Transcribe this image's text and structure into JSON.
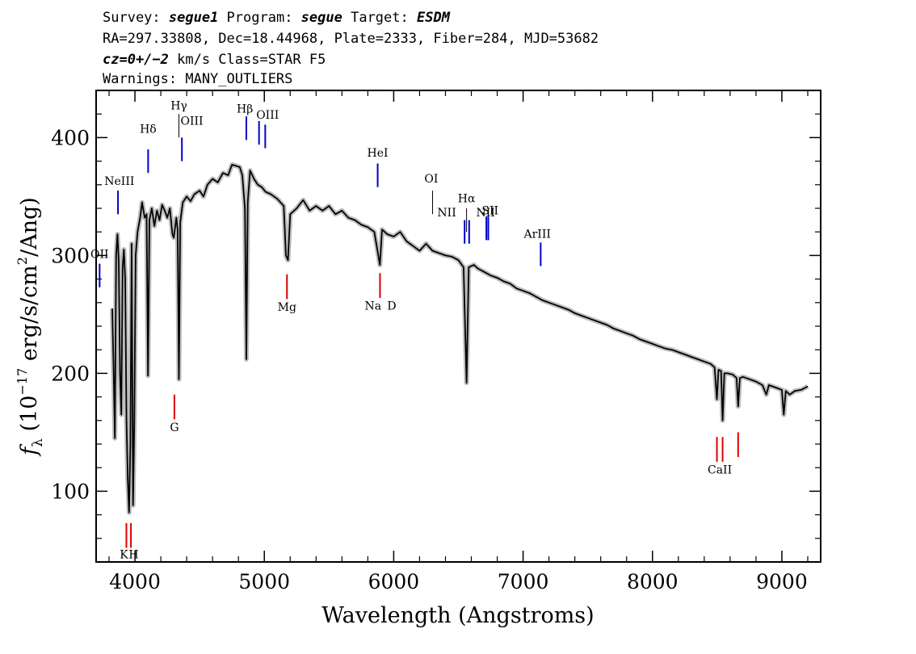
{
  "header": {
    "line1": {
      "survey_label": "Survey: ",
      "survey": "segue1",
      "program_label": " Program: ",
      "program": "segue",
      "target_label": " Target: ",
      "target": "ESDM"
    },
    "line2": "RA=297.33808, Dec=18.44968, Plate=2333, Fiber=284, MJD=53682",
    "line3": {
      "cz": "cz=0+/−2",
      "rest": " km/s Class=STAR F5"
    },
    "line4": "Warnings: MANY_OUTLIERS"
  },
  "chart_data": {
    "type": "line",
    "xlabel": "Wavelength (Angstroms)",
    "ylabel": {
      "prefix": "f",
      "subscript": "λ",
      "unit_start": " (10",
      "exponent": "−17",
      "unit_mid": " erg/s/cm",
      "unit_sq": "2",
      "unit_end": "/Ang)"
    },
    "xlim": [
      3700,
      9300
    ],
    "ylim": [
      40,
      440
    ],
    "x_ticks": [
      4000,
      5000,
      6000,
      7000,
      8000,
      9000
    ],
    "y_ticks": [
      100,
      200,
      300,
      400
    ],
    "grid": false,
    "series": [
      {
        "color": "#000000",
        "error_color": "#bdbdbd",
        "points": [
          [
            3825,
            255
          ],
          [
            3835,
            205
          ],
          [
            3845,
            145
          ],
          [
            3855,
            300
          ],
          [
            3865,
            318
          ],
          [
            3875,
            295
          ],
          [
            3885,
            200
          ],
          [
            3895,
            165
          ],
          [
            3905,
            290
          ],
          [
            3915,
            305
          ],
          [
            3925,
            280
          ],
          [
            3935,
            160
          ],
          [
            3945,
            110
          ],
          [
            3955,
            82
          ],
          [
            3965,
            140
          ],
          [
            3975,
            310
          ],
          [
            3985,
            88
          ],
          [
            3995,
            160
          ],
          [
            4005,
            300
          ],
          [
            4020,
            320
          ],
          [
            4040,
            332
          ],
          [
            4055,
            345
          ],
          [
            4075,
            332
          ],
          [
            4090,
            335
          ],
          [
            4101,
            198
          ],
          [
            4112,
            330
          ],
          [
            4130,
            340
          ],
          [
            4150,
            325
          ],
          [
            4170,
            338
          ],
          [
            4190,
            330
          ],
          [
            4210,
            343
          ],
          [
            4230,
            338
          ],
          [
            4250,
            332
          ],
          [
            4270,
            340
          ],
          [
            4290,
            318
          ],
          [
            4300,
            315
          ],
          [
            4320,
            332
          ],
          [
            4330,
            322
          ],
          [
            4340,
            195
          ],
          [
            4350,
            328
          ],
          [
            4370,
            345
          ],
          [
            4400,
            350
          ],
          [
            4430,
            346
          ],
          [
            4460,
            352
          ],
          [
            4500,
            355
          ],
          [
            4530,
            350
          ],
          [
            4560,
            360
          ],
          [
            4600,
            365
          ],
          [
            4640,
            362
          ],
          [
            4680,
            370
          ],
          [
            4720,
            368
          ],
          [
            4750,
            377
          ],
          [
            4780,
            376
          ],
          [
            4810,
            375
          ],
          [
            4830,
            368
          ],
          [
            4850,
            340
          ],
          [
            4861,
            212
          ],
          [
            4872,
            345
          ],
          [
            4890,
            372
          ],
          [
            4920,
            365
          ],
          [
            4950,
            360
          ],
          [
            4980,
            358
          ],
          [
            5010,
            354
          ],
          [
            5050,
            352
          ],
          [
            5100,
            348
          ],
          [
            5150,
            342
          ],
          [
            5167,
            300
          ],
          [
            5183,
            296
          ],
          [
            5200,
            335
          ],
          [
            5250,
            340
          ],
          [
            5300,
            347
          ],
          [
            5350,
            338
          ],
          [
            5400,
            342
          ],
          [
            5450,
            338
          ],
          [
            5500,
            342
          ],
          [
            5550,
            335
          ],
          [
            5600,
            338
          ],
          [
            5650,
            332
          ],
          [
            5700,
            330
          ],
          [
            5750,
            326
          ],
          [
            5800,
            324
          ],
          [
            5850,
            320
          ],
          [
            5893,
            292
          ],
          [
            5910,
            322
          ],
          [
            5950,
            318
          ],
          [
            6000,
            316
          ],
          [
            6050,
            320
          ],
          [
            6100,
            312
          ],
          [
            6150,
            308
          ],
          [
            6200,
            304
          ],
          [
            6250,
            310
          ],
          [
            6300,
            304
          ],
          [
            6350,
            302
          ],
          [
            6400,
            300
          ],
          [
            6450,
            299
          ],
          [
            6500,
            296
          ],
          [
            6540,
            290
          ],
          [
            6563,
            192
          ],
          [
            6580,
            290
          ],
          [
            6620,
            292
          ],
          [
            6650,
            289
          ],
          [
            6700,
            286
          ],
          [
            6750,
            283
          ],
          [
            6800,
            281
          ],
          [
            6850,
            278
          ],
          [
            6900,
            276
          ],
          [
            6950,
            272
          ],
          [
            7000,
            270
          ],
          [
            7050,
            268
          ],
          [
            7100,
            265
          ],
          [
            7150,
            262
          ],
          [
            7200,
            260
          ],
          [
            7250,
            258
          ],
          [
            7300,
            256
          ],
          [
            7350,
            254
          ],
          [
            7400,
            251
          ],
          [
            7450,
            249
          ],
          [
            7500,
            247
          ],
          [
            7550,
            245
          ],
          [
            7600,
            243
          ],
          [
            7650,
            241
          ],
          [
            7700,
            238
          ],
          [
            7750,
            236
          ],
          [
            7800,
            234
          ],
          [
            7850,
            232
          ],
          [
            7900,
            229
          ],
          [
            7950,
            227
          ],
          [
            8000,
            225
          ],
          [
            8050,
            223
          ],
          [
            8100,
            221
          ],
          [
            8150,
            220
          ],
          [
            8200,
            218
          ],
          [
            8250,
            216
          ],
          [
            8300,
            214
          ],
          [
            8350,
            212
          ],
          [
            8400,
            210
          ],
          [
            8450,
            208
          ],
          [
            8480,
            205
          ],
          [
            8498,
            178
          ],
          [
            8510,
            203
          ],
          [
            8530,
            202
          ],
          [
            8542,
            160
          ],
          [
            8555,
            200
          ],
          [
            8580,
            200
          ],
          [
            8620,
            199
          ],
          [
            8650,
            196
          ],
          [
            8662,
            172
          ],
          [
            8675,
            196
          ],
          [
            8700,
            197
          ],
          [
            8750,
            195
          ],
          [
            8800,
            193
          ],
          [
            8850,
            190
          ],
          [
            8880,
            182
          ],
          [
            8900,
            190
          ],
          [
            8950,
            188
          ],
          [
            9000,
            186
          ],
          [
            9015,
            165
          ],
          [
            9030,
            185
          ],
          [
            9060,
            182
          ],
          [
            9100,
            185
          ],
          [
            9150,
            186
          ],
          [
            9200,
            189
          ]
        ]
      }
    ],
    "annotations": {
      "blue": [
        {
          "label": "OII",
          "x": 3727,
          "y1": 273,
          "y2": 293
        },
        {
          "label": "NeIII",
          "x": 3869,
          "y1": 335,
          "y2": 355
        },
        {
          "label": "Hδ",
          "x": 4102,
          "y1": 370,
          "y2": 390
        },
        {
          "label": "OIII",
          "x": 4363,
          "y1": 380,
          "y2": 400
        },
        {
          "label": "Hβ",
          "x": 4861,
          "y1": 398,
          "y2": 418
        },
        {
          "label": "OIII",
          "x": 4959,
          "y1": 394,
          "y2": 414
        },
        {
          "label": "OIII",
          "x": 5007,
          "y1": 391,
          "y2": 411
        },
        {
          "label": "HeI",
          "x": 5876,
          "y1": 358,
          "y2": 378
        },
        {
          "label": "NII",
          "x": 6548,
          "y1": 310,
          "y2": 330
        },
        {
          "label": "NII",
          "x": 6583,
          "y1": 310,
          "y2": 330
        },
        {
          "label": "SII",
          "x": 6716,
          "y1": 313,
          "y2": 333
        },
        {
          "label": "SII",
          "x": 6731,
          "y1": 313,
          "y2": 333
        },
        {
          "label": "ArIII",
          "x": 7136,
          "y1": 291,
          "y2": 311
        }
      ],
      "emission_thin": [
        {
          "label": "Hγ",
          "x": 4340,
          "y1": 400,
          "y2": 420
        },
        {
          "label": "OI",
          "x": 6300,
          "y1": 335,
          "y2": 355
        },
        {
          "label": "Hα",
          "x": 6563,
          "y1": 320,
          "y2": 340
        }
      ],
      "red": [
        {
          "label": "K",
          "x": 3934,
          "y1": 52,
          "y2": 73
        },
        {
          "label": "H",
          "x": 3969,
          "y1": 52,
          "y2": 73
        },
        {
          "label": "G",
          "x": 4305,
          "y1": 161,
          "y2": 182
        },
        {
          "label": "Mg",
          "x": 5175,
          "y1": 263,
          "y2": 284
        },
        {
          "label": "Na",
          "x": 5894,
          "y1": 264,
          "y2": 285
        },
        {
          "label": "CaII",
          "x": 8498,
          "y1": 125,
          "y2": 146
        },
        {
          "label": "CaII",
          "x": 8542,
          "y1": 125,
          "y2": 146
        },
        {
          "label": "CaII",
          "x": 8662,
          "y1": 129,
          "y2": 150
        }
      ],
      "text": [
        {
          "text": "OII",
          "x": 3727,
          "y": 298
        },
        {
          "text": "NeIII",
          "x": 3880,
          "y": 360
        },
        {
          "text": "Hδ",
          "x": 4102,
          "y": 404
        },
        {
          "text": "Hγ",
          "x": 4340,
          "y": 424
        },
        {
          "text": "OIII",
          "x": 4440,
          "y": 411
        },
        {
          "text": "Hβ",
          "x": 4850,
          "y": 421
        },
        {
          "text": "OIII",
          "x": 5025,
          "y": 416
        },
        {
          "text": "HeI",
          "x": 5876,
          "y": 384
        },
        {
          "text": "OI",
          "x": 6290,
          "y": 362
        },
        {
          "text": "Hα",
          "x": 6563,
          "y": 345
        },
        {
          "text": "NII",
          "x": 6410,
          "y": 333
        },
        {
          "text": "NII",
          "x": 6710,
          "y": 333
        },
        {
          "text": "SII",
          "x": 6745,
          "y": 335
        },
        {
          "text": "ArIII",
          "x": 7110,
          "y": 315
        },
        {
          "text": "Mg",
          "x": 5175,
          "y": 253
        },
        {
          "text": "Na",
          "x": 5840,
          "y": 254
        },
        {
          "text": "D",
          "x": 5985,
          "y": 254
        },
        {
          "text": "G",
          "x": 4305,
          "y": 151
        },
        {
          "text": "CaII",
          "x": 8520,
          "y": 115
        },
        {
          "text": "K",
          "x": 3915,
          "y": 43
        },
        {
          "text": "H",
          "x": 3990,
          "y": 43
        }
      ]
    },
    "colors": {
      "blue": "#0000cc",
      "red": "#dd0000",
      "emission_thin": "#000000"
    }
  }
}
